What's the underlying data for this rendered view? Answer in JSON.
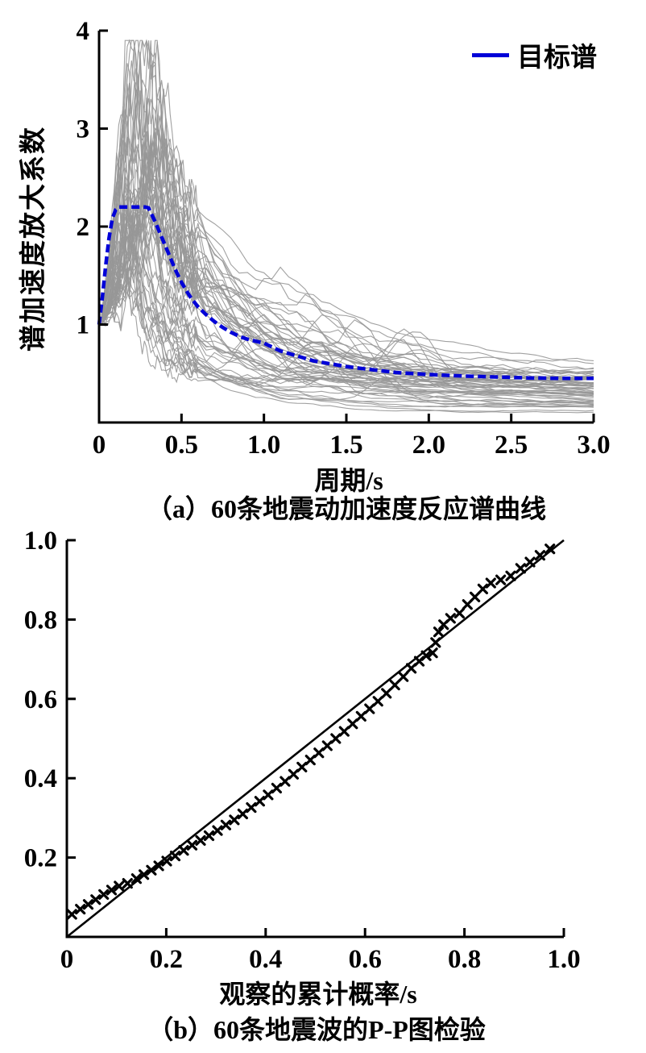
{
  "page": {
    "background": "#ffffff",
    "text_color": "#000000"
  },
  "chart_data": [
    {
      "type": "line",
      "panel": "a",
      "title": "（a）60条地震动加速度反应谱曲线",
      "xlabel": "周期/s",
      "ylabel": "谱加速度放大系数",
      "xlim": [
        0,
        3.0
      ],
      "ylim": [
        0,
        4
      ],
      "xticks": [
        0,
        0.5,
        1.0,
        1.5,
        2.0,
        2.5,
        3.0
      ],
      "xtick_labels": [
        "0",
        "0.5",
        "1.0",
        "1.5",
        "2.0",
        "2.5",
        "3.0"
      ],
      "yticks": [
        1,
        2,
        3,
        4
      ],
      "ytick_labels": [
        "1",
        "2",
        "3",
        "4"
      ],
      "grid": false,
      "legend": {
        "position": "top-right",
        "entries": [
          {
            "label": "目标谱",
            "color": "#0000d8",
            "marker": "line"
          }
        ]
      },
      "series": [
        {
          "name": "目标谱",
          "color": "#0000d8",
          "line_width": 4.5,
          "dash": [
            10,
            5
          ],
          "x": [
            0.0,
            0.02,
            0.04,
            0.06,
            0.08,
            0.1,
            0.12,
            0.16,
            0.2,
            0.24,
            0.28,
            0.3,
            0.34,
            0.38,
            0.42,
            0.46,
            0.5,
            0.55,
            0.6,
            0.65,
            0.7,
            0.75,
            0.8,
            0.85,
            0.9,
            0.95,
            1.0,
            1.1,
            1.2,
            1.3,
            1.4,
            1.5,
            1.6,
            1.7,
            1.8,
            1.9,
            2.0,
            2.2,
            2.4,
            2.6,
            2.8,
            3.0
          ],
          "y": [
            1.0,
            1.28,
            1.6,
            1.88,
            2.08,
            2.17,
            2.2,
            2.2,
            2.2,
            2.2,
            2.2,
            2.19,
            2.05,
            1.89,
            1.73,
            1.57,
            1.43,
            1.29,
            1.18,
            1.1,
            1.03,
            0.97,
            0.92,
            0.88,
            0.85,
            0.83,
            0.81,
            0.73,
            0.68,
            0.63,
            0.6,
            0.57,
            0.55,
            0.53,
            0.51,
            0.5,
            0.49,
            0.475,
            0.465,
            0.455,
            0.45,
            0.45
          ]
        }
      ],
      "ensemble": {
        "name": "60条地震动加速度反应谱",
        "count": 60,
        "color": "#979797",
        "line_width": 1.1,
        "seed": 20240607,
        "description": "60 gray jagged ground-motion response-spectrum curves: start near 1.0 at T=0, peaks 1.5-3.9 between T=0.1-0.45 s, decay to 0.1-0.9 by T=3 s, occasional secondary bumps near T=0.8-2.0 s"
      }
    },
    {
      "type": "scatter",
      "panel": "b",
      "title": "（b）60条地震波的P-P图检验",
      "xlabel": "观察的累计概率/s",
      "ylabel": "",
      "xlim": [
        0,
        1.0
      ],
      "ylim": [
        0,
        1.0
      ],
      "xticks": [
        0,
        0.2,
        0.4,
        0.6,
        0.8,
        1.0
      ],
      "xtick_labels": [
        "0",
        "0.2",
        "0.4",
        "0.6",
        "0.8",
        "1.0"
      ],
      "yticks": [
        0.2,
        0.4,
        0.6,
        0.8,
        1.0
      ],
      "ytick_labels": [
        "0.2",
        "0.4",
        "0.6",
        "0.8",
        "1.0"
      ],
      "grid": false,
      "marker": {
        "shape": "x",
        "color": "#000000",
        "size": 10
      },
      "reference_line": {
        "x1": 0,
        "y1": 0,
        "x2": 1,
        "y2": 1,
        "color": "#000000",
        "width": 2.6
      },
      "points": [
        [
          0.01,
          0.057
        ],
        [
          0.027,
          0.07
        ],
        [
          0.043,
          0.082
        ],
        [
          0.058,
          0.094
        ],
        [
          0.074,
          0.107
        ],
        [
          0.09,
          0.118
        ],
        [
          0.105,
          0.128
        ],
        [
          0.122,
          0.135
        ],
        [
          0.14,
          0.147
        ],
        [
          0.155,
          0.157
        ],
        [
          0.17,
          0.168
        ],
        [
          0.185,
          0.179
        ],
        [
          0.201,
          0.191
        ],
        [
          0.218,
          0.204
        ],
        [
          0.235,
          0.218
        ],
        [
          0.252,
          0.231
        ],
        [
          0.269,
          0.243
        ],
        [
          0.286,
          0.255
        ],
        [
          0.303,
          0.268
        ],
        [
          0.32,
          0.282
        ],
        [
          0.337,
          0.295
        ],
        [
          0.354,
          0.31
        ],
        [
          0.371,
          0.326
        ],
        [
          0.388,
          0.342
        ],
        [
          0.405,
          0.358
        ],
        [
          0.422,
          0.375
        ],
        [
          0.439,
          0.392
        ],
        [
          0.456,
          0.41
        ],
        [
          0.473,
          0.428
        ],
        [
          0.49,
          0.446
        ],
        [
          0.507,
          0.464
        ],
        [
          0.524,
          0.482
        ],
        [
          0.541,
          0.5
        ],
        [
          0.558,
          0.518
        ],
        [
          0.575,
          0.537
        ],
        [
          0.592,
          0.556
        ],
        [
          0.609,
          0.575
        ],
        [
          0.626,
          0.594
        ],
        [
          0.643,
          0.614
        ],
        [
          0.66,
          0.635
        ],
        [
          0.677,
          0.656
        ],
        [
          0.693,
          0.677
        ],
        [
          0.709,
          0.695
        ],
        [
          0.723,
          0.709
        ],
        [
          0.736,
          0.716
        ],
        [
          0.742,
          0.742
        ],
        [
          0.748,
          0.769
        ],
        [
          0.758,
          0.787
        ],
        [
          0.772,
          0.803
        ],
        [
          0.79,
          0.816
        ],
        [
          0.806,
          0.838
        ],
        [
          0.821,
          0.857
        ],
        [
          0.837,
          0.877
        ],
        [
          0.853,
          0.892
        ],
        [
          0.873,
          0.9
        ],
        [
          0.893,
          0.91
        ],
        [
          0.913,
          0.929
        ],
        [
          0.932,
          0.945
        ],
        [
          0.952,
          0.962
        ],
        [
          0.972,
          0.978
        ]
      ]
    }
  ]
}
